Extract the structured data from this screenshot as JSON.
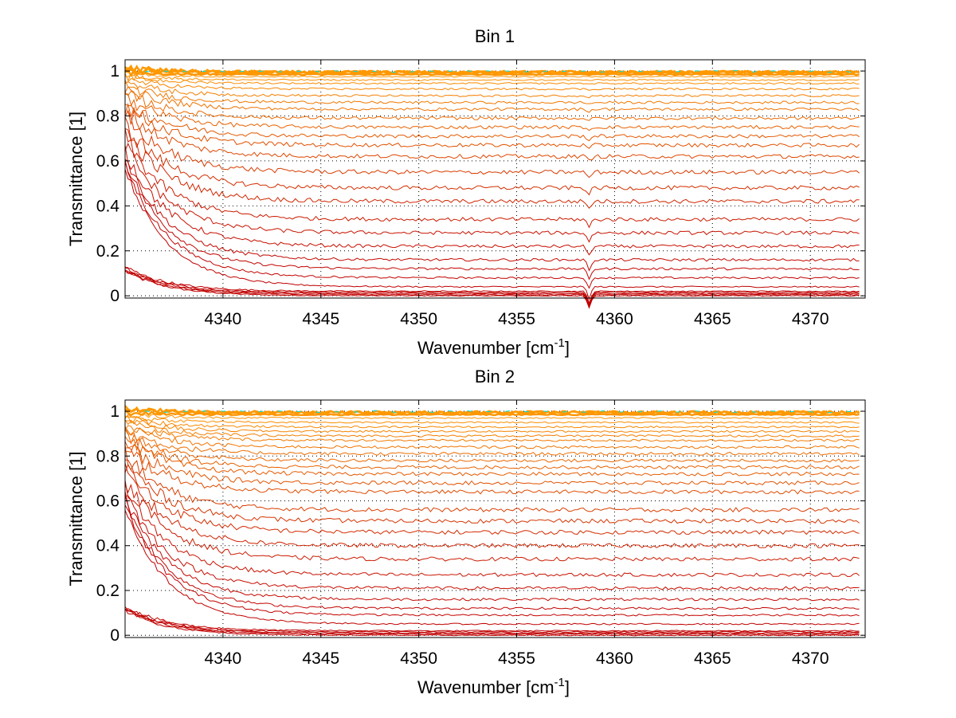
{
  "chart_data": [
    {
      "type": "line",
      "title": "Bin 1",
      "xlabel": "Wavenumber [cm",
      "xlabel_sup": "-1",
      "xlabel_close": "]",
      "ylabel": "Transmittance [1]",
      "xlim": [
        4335,
        4372.8
      ],
      "ylim": [
        -0.01,
        1.05
      ],
      "grid": true,
      "xticks": [
        4340,
        4345,
        4350,
        4355,
        4360,
        4365,
        4370
      ],
      "yticks": [
        0,
        0.2,
        0.4,
        0.6,
        0.8,
        1
      ],
      "xtick_labels": [
        "4340",
        "4345",
        "4350",
        "4355",
        "4360",
        "4365",
        "4370"
      ],
      "ytick_labels": [
        "0",
        "0.2",
        "0.4",
        "0.6",
        "0.8",
        "1"
      ],
      "x_start": 4335,
      "x_end": 4372.5,
      "feature_depth": 0.3,
      "feature_x": 4358.7,
      "series_levels": [
        0.0,
        0.005,
        0.01,
        0.015,
        0.02,
        0.04,
        0.08,
        0.12,
        0.16,
        0.22,
        0.28,
        0.34,
        0.42,
        0.48,
        0.55,
        0.62,
        0.67,
        0.71,
        0.75,
        0.79,
        0.83,
        0.86,
        0.89,
        0.92,
        0.945,
        0.96,
        0.975,
        0.985,
        0.99,
        0.995,
        1.0
      ],
      "colors": {
        "low": "#c00000",
        "high": "#ff9900",
        "cyan": "#00e0e0"
      }
    },
    {
      "type": "line",
      "title": "Bin 2",
      "xlabel": "Wavenumber [cm",
      "xlabel_sup": "-1",
      "xlabel_close": "]",
      "ylabel": "Transmittance [1]",
      "xlim": [
        4335,
        4372.8
      ],
      "ylim": [
        -0.01,
        1.05
      ],
      "grid": true,
      "xticks": [
        4340,
        4345,
        4350,
        4355,
        4360,
        4365,
        4370
      ],
      "yticks": [
        0,
        0.2,
        0.4,
        0.6,
        0.8,
        1
      ],
      "xtick_labels": [
        "4340",
        "4345",
        "4350",
        "4355",
        "4360",
        "4365",
        "4370"
      ],
      "ytick_labels": [
        "0",
        "0.2",
        "0.4",
        "0.6",
        "0.8",
        "1"
      ],
      "x_start": 4335,
      "x_end": 4372.5,
      "feature_depth": 0.0,
      "feature_x": 4358.7,
      "series_levels": [
        0.0,
        0.005,
        0.01,
        0.015,
        0.02,
        0.05,
        0.09,
        0.12,
        0.16,
        0.21,
        0.27,
        0.34,
        0.4,
        0.46,
        0.51,
        0.56,
        0.64,
        0.68,
        0.72,
        0.75,
        0.78,
        0.81,
        0.84,
        0.87,
        0.89,
        0.91,
        0.93,
        0.95,
        0.97,
        0.985,
        0.995,
        1.0
      ],
      "colors": {
        "low": "#c00000",
        "high": "#ff9900",
        "cyan": "#00e0e0"
      }
    }
  ]
}
